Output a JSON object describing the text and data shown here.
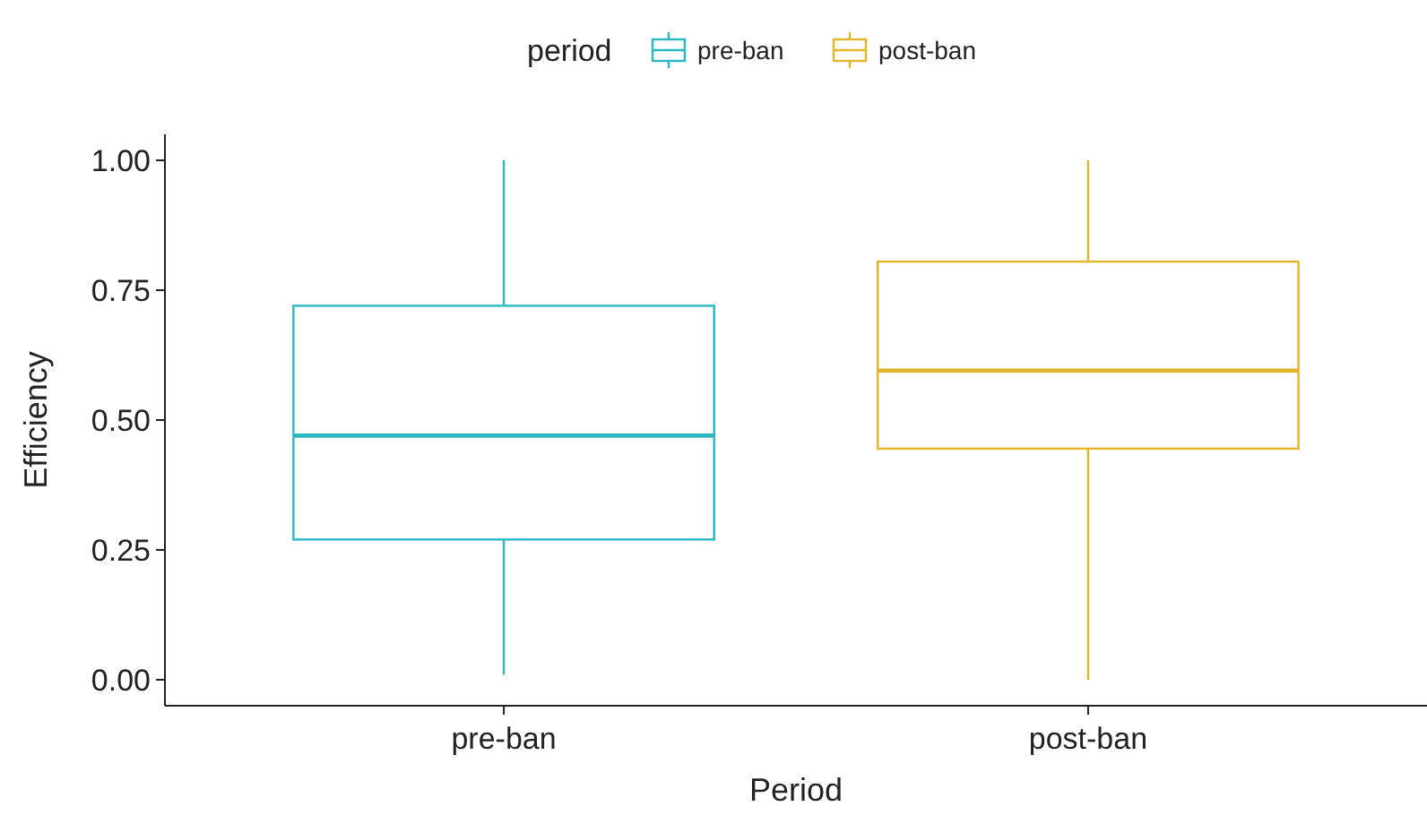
{
  "chart_data": {
    "type": "box",
    "categories": [
      "pre-ban",
      "post-ban"
    ],
    "xlabel": "Period",
    "ylabel": "Efficiency",
    "legend_title": "period",
    "legend": "top",
    "grid": false,
    "ylim": [
      -0.05,
      1.05
    ],
    "yticks": [
      {
        "value": 0,
        "label": "0.00"
      },
      {
        "value": 0.25,
        "label": "0.25"
      },
      {
        "value": 0.5,
        "label": "0.50"
      },
      {
        "value": 0.75,
        "label": "0.75"
      },
      {
        "value": 1,
        "label": "1.00"
      }
    ],
    "series": [
      {
        "name": "pre-ban",
        "color": "#2ab7c1",
        "boxes": [
          {
            "low": 0.01,
            "q1": 0.27,
            "median": 0.47,
            "q3": 0.72,
            "high": 1.0
          },
          null
        ]
      },
      {
        "name": "post-ban",
        "color": "#e3b52a",
        "boxes": [
          null,
          {
            "low": 0.0,
            "q1": 0.445,
            "median": 0.595,
            "q3": 0.805,
            "high": 1.0
          }
        ]
      }
    ]
  }
}
